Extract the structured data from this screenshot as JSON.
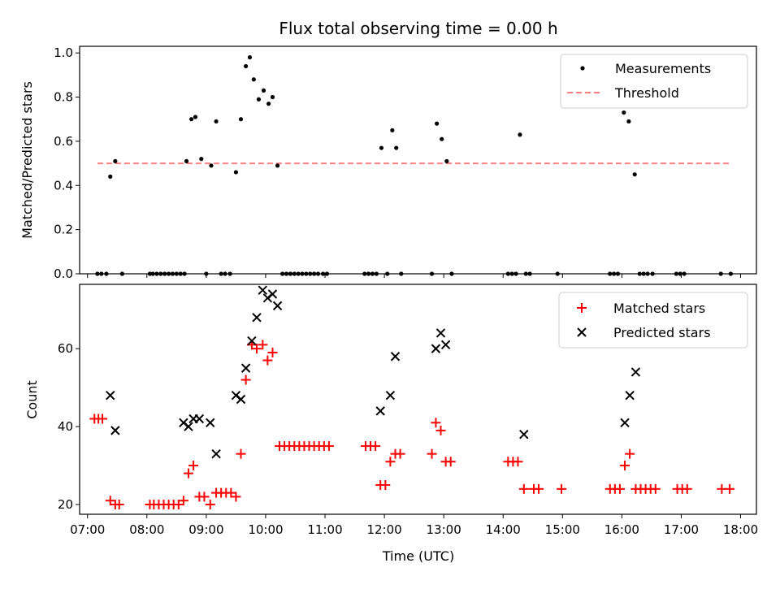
{
  "chart_data": [
    {
      "panel": "top",
      "type": "scatter",
      "title": "Flux total observing time = 0.00 h",
      "xlabel": "",
      "ylabel": "Matched/Predicted stars",
      "xlim": [
        "06:52",
        "18:16"
      ],
      "ylim": [
        0.0,
        1.03
      ],
      "yticks": [
        "0.0",
        "0.2",
        "0.4",
        "0.6",
        "0.8",
        "1.0"
      ],
      "x_ticks_labeled": false,
      "legend": {
        "position": "top-right",
        "entries": [
          "Measurements",
          "Threshold"
        ]
      },
      "series": [
        {
          "name": "Measurements",
          "marker": "dot",
          "color": "#000000",
          "points": [
            [
              "07:10",
              0
            ],
            [
              "07:14",
              0
            ],
            [
              "07:19",
              0
            ],
            [
              "07:23",
              0.44
            ],
            [
              "07:28",
              0.51
            ],
            [
              "07:35",
              0
            ],
            [
              "08:03",
              0
            ],
            [
              "08:06",
              0
            ],
            [
              "08:10",
              0
            ],
            [
              "08:14",
              0
            ],
            [
              "08:18",
              0
            ],
            [
              "08:22",
              0
            ],
            [
              "08:26",
              0
            ],
            [
              "08:30",
              0
            ],
            [
              "08:34",
              0
            ],
            [
              "08:38",
              0
            ],
            [
              "08:40",
              0.51
            ],
            [
              "08:45",
              0.7
            ],
            [
              "08:49",
              0.71
            ],
            [
              "08:55",
              0.52
            ],
            [
              "09:00",
              0
            ],
            [
              "09:05",
              0.49
            ],
            [
              "09:10",
              0.69
            ],
            [
              "09:15",
              0
            ],
            [
              "09:19",
              0
            ],
            [
              "09:24",
              0
            ],
            [
              "09:30",
              0.46
            ],
            [
              "09:35",
              0.7
            ],
            [
              "09:40",
              0.94
            ],
            [
              "09:44",
              0.98
            ],
            [
              "09:48",
              0.88
            ],
            [
              "09:53",
              0.79
            ],
            [
              "09:58",
              0.83
            ],
            [
              "10:03",
              0.77
            ],
            [
              "10:07",
              0.8
            ],
            [
              "10:12",
              0.49
            ],
            [
              "10:17",
              0
            ],
            [
              "10:21",
              0
            ],
            [
              "10:25",
              0
            ],
            [
              "10:29",
              0
            ],
            [
              "10:33",
              0
            ],
            [
              "10:37",
              0
            ],
            [
              "10:41",
              0
            ],
            [
              "10:45",
              0
            ],
            [
              "10:49",
              0
            ],
            [
              "10:53",
              0
            ],
            [
              "10:58",
              0
            ],
            [
              "11:02",
              0
            ],
            [
              "11:40",
              0
            ],
            [
              "11:44",
              0
            ],
            [
              "11:48",
              0
            ],
            [
              "11:52",
              0
            ],
            [
              "11:57",
              0.57
            ],
            [
              "12:03",
              0
            ],
            [
              "12:08",
              0.65
            ],
            [
              "12:12",
              0.57
            ],
            [
              "12:17",
              0
            ],
            [
              "12:48",
              0
            ],
            [
              "12:53",
              0.68
            ],
            [
              "12:58",
              0.61
            ],
            [
              "13:03",
              0.51
            ],
            [
              "13:08",
              0
            ],
            [
              "14:05",
              0
            ],
            [
              "14:09",
              0
            ],
            [
              "14:13",
              0
            ],
            [
              "14:17",
              0.63
            ],
            [
              "14:23",
              0
            ],
            [
              "14:27",
              0
            ],
            [
              "14:55",
              0
            ],
            [
              "15:48",
              0
            ],
            [
              "15:52",
              0
            ],
            [
              "15:56",
              0
            ],
            [
              "16:02",
              0.73
            ],
            [
              "16:07",
              0.69
            ],
            [
              "16:13",
              0.45
            ],
            [
              "16:18",
              0
            ],
            [
              "16:22",
              0
            ],
            [
              "16:26",
              0
            ],
            [
              "16:31",
              0
            ],
            [
              "16:55",
              0
            ],
            [
              "16:59",
              0
            ],
            [
              "17:03",
              0
            ],
            [
              "17:40",
              0
            ],
            [
              "17:50",
              0
            ]
          ]
        },
        {
          "name": "Threshold",
          "type": "line",
          "style": "dashed",
          "color": "#ff7f7f",
          "x": [
            "07:10",
            "17:50"
          ],
          "y": [
            0.5,
            0.5
          ]
        }
      ]
    },
    {
      "panel": "bottom",
      "type": "scatter",
      "xlabel": "Time (UTC)",
      "ylabel": "Count",
      "xlim": [
        "06:52",
        "18:16"
      ],
      "ylim": [
        17.5,
        76.5
      ],
      "yticks": [
        "20",
        "40",
        "60"
      ],
      "xticks": [
        "07:00",
        "08:00",
        "09:00",
        "10:00",
        "11:00",
        "12:00",
        "13:00",
        "14:00",
        "15:00",
        "16:00",
        "17:00",
        "18:00"
      ],
      "legend": {
        "position": "top-right",
        "entries": [
          "Matched stars",
          "Predicted stars"
        ]
      },
      "series": [
        {
          "name": "Matched stars",
          "marker": "plus",
          "color": "#ff0000",
          "points": [
            [
              "07:07",
              42
            ],
            [
              "07:11",
              42
            ],
            [
              "07:15",
              42
            ],
            [
              "07:23",
              21
            ],
            [
              "07:28",
              20
            ],
            [
              "07:32",
              20
            ],
            [
              "08:03",
              20
            ],
            [
              "08:07",
              20
            ],
            [
              "08:12",
              20
            ],
            [
              "08:17",
              20
            ],
            [
              "08:22",
              20
            ],
            [
              "08:27",
              20
            ],
            [
              "08:32",
              20
            ],
            [
              "08:37",
              21
            ],
            [
              "08:42",
              28
            ],
            [
              "08:47",
              30
            ],
            [
              "08:53",
              22
            ],
            [
              "08:58",
              22
            ],
            [
              "09:04",
              20
            ],
            [
              "09:10",
              23
            ],
            [
              "09:15",
              23
            ],
            [
              "09:20",
              23
            ],
            [
              "09:25",
              23
            ],
            [
              "09:30",
              22
            ],
            [
              "09:35",
              33
            ],
            [
              "09:40",
              52
            ],
            [
              "09:46",
              61
            ],
            [
              "09:51",
              60
            ],
            [
              "09:57",
              61
            ],
            [
              "10:02",
              57
            ],
            [
              "10:07",
              59
            ],
            [
              "10:14",
              35
            ],
            [
              "10:19",
              35
            ],
            [
              "10:24",
              35
            ],
            [
              "10:29",
              35
            ],
            [
              "10:34",
              35
            ],
            [
              "10:39",
              35
            ],
            [
              "10:44",
              35
            ],
            [
              "10:49",
              35
            ],
            [
              "10:54",
              35
            ],
            [
              "10:59",
              35
            ],
            [
              "11:04",
              35
            ],
            [
              "11:41",
              35
            ],
            [
              "11:46",
              35
            ],
            [
              "11:51",
              35
            ],
            [
              "11:56",
              25
            ],
            [
              "12:01",
              25
            ],
            [
              "12:06",
              31
            ],
            [
              "12:11",
              33
            ],
            [
              "12:16",
              33
            ],
            [
              "12:48",
              33
            ],
            [
              "12:52",
              41
            ],
            [
              "12:57",
              39
            ],
            [
              "13:02",
              31
            ],
            [
              "13:07",
              31
            ],
            [
              "14:05",
              31
            ],
            [
              "14:10",
              31
            ],
            [
              "14:15",
              31
            ],
            [
              "14:21",
              24
            ],
            [
              "14:31",
              24
            ],
            [
              "14:36",
              24
            ],
            [
              "14:59",
              24
            ],
            [
              "15:48",
              24
            ],
            [
              "15:53",
              24
            ],
            [
              "15:58",
              24
            ],
            [
              "16:03",
              30
            ],
            [
              "16:08",
              33
            ],
            [
              "16:14",
              24
            ],
            [
              "16:19",
              24
            ],
            [
              "16:24",
              24
            ],
            [
              "16:29",
              24
            ],
            [
              "16:34",
              24
            ],
            [
              "16:56",
              24
            ],
            [
              "17:01",
              24
            ],
            [
              "17:06",
              24
            ],
            [
              "17:41",
              24
            ],
            [
              "17:49",
              24
            ]
          ]
        },
        {
          "name": "Predicted stars",
          "marker": "x",
          "color": "#000000",
          "points": [
            [
              "07:23",
              48
            ],
            [
              "07:28",
              39
            ],
            [
              "08:37",
              41
            ],
            [
              "08:42",
              40
            ],
            [
              "08:47",
              42
            ],
            [
              "08:53",
              42
            ],
            [
              "09:04",
              41
            ],
            [
              "09:10",
              33
            ],
            [
              "09:30",
              48
            ],
            [
              "09:35",
              47
            ],
            [
              "09:40",
              55
            ],
            [
              "09:46",
              62
            ],
            [
              "09:51",
              68
            ],
            [
              "09:57",
              75
            ],
            [
              "10:02",
              73
            ],
            [
              "10:07",
              74
            ],
            [
              "10:12",
              71
            ],
            [
              "11:56",
              44
            ],
            [
              "12:06",
              48
            ],
            [
              "12:11",
              58
            ],
            [
              "12:52",
              60
            ],
            [
              "12:57",
              64
            ],
            [
              "13:02",
              61
            ],
            [
              "14:21",
              38
            ],
            [
              "16:03",
              41
            ],
            [
              "16:08",
              48
            ],
            [
              "16:14",
              54
            ]
          ]
        }
      ]
    }
  ]
}
